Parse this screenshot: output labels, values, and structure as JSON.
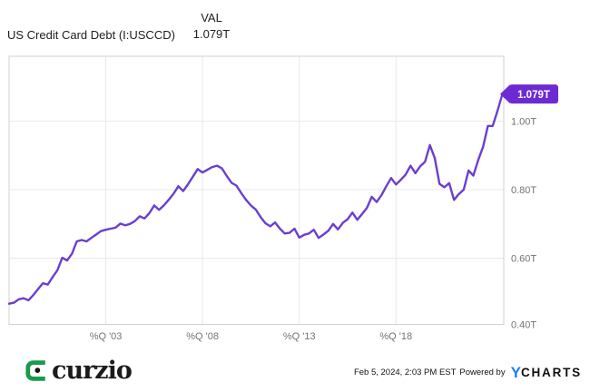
{
  "header": {
    "title": "US Credit Card Debt (I:USCCD)",
    "val_label": "VAL",
    "val_value": "1.079T"
  },
  "chart_data": {
    "type": "line",
    "series_name": "US Credit Card Debt",
    "unit": "trillions USD",
    "start_year": 1998,
    "start_quarter": 1,
    "end_period": "2023 Q3",
    "frequency": "quarterly",
    "quarterly_values": [
      0.467,
      0.47,
      0.48,
      0.483,
      0.477,
      0.492,
      0.51,
      0.527,
      0.523,
      0.545,
      0.565,
      0.601,
      0.593,
      0.613,
      0.649,
      0.653,
      0.649,
      0.659,
      0.669,
      0.679,
      0.683,
      0.686,
      0.689,
      0.701,
      0.696,
      0.7,
      0.708,
      0.722,
      0.716,
      0.731,
      0.754,
      0.741,
      0.754,
      0.77,
      0.788,
      0.81,
      0.796,
      0.816,
      0.838,
      0.86,
      0.85,
      0.858,
      0.866,
      0.87,
      0.862,
      0.84,
      0.82,
      0.812,
      0.79,
      0.77,
      0.754,
      0.742,
      0.72,
      0.702,
      0.693,
      0.704,
      0.686,
      0.672,
      0.674,
      0.686,
      0.66,
      0.668,
      0.672,
      0.683,
      0.659,
      0.669,
      0.68,
      0.7,
      0.684,
      0.703,
      0.714,
      0.733,
      0.712,
      0.729,
      0.747,
      0.779,
      0.764,
      0.784,
      0.81,
      0.834,
      0.815,
      0.829,
      0.844,
      0.87,
      0.848,
      0.868,
      0.881,
      0.93,
      0.893,
      0.817,
      0.807,
      0.819,
      0.77,
      0.787,
      0.8,
      0.856,
      0.841,
      0.887,
      0.925,
      0.986,
      0.986,
      1.031,
      1.079
    ],
    "last_value_label": "1.079T",
    "x_ticks": [
      {
        "label": "%Q '03",
        "year": 2003
      },
      {
        "label": "%Q '08",
        "year": 2008
      },
      {
        "label": "%Q '13",
        "year": 2013
      },
      {
        "label": "%Q '18",
        "year": 2018
      }
    ],
    "y_ticks": [
      {
        "label": "1.00T",
        "value": 1.0
      },
      {
        "label": "0.80T",
        "value": 0.8
      },
      {
        "label": "0.60T",
        "value": 0.6
      },
      {
        "label": "0.40T",
        "value": 0.4
      }
    ],
    "ylim": [
      0.4,
      1.19
    ],
    "grid": true,
    "legend_position": "none",
    "line_color": "#6a3fd0",
    "badge_color": "#6d2ad3",
    "grid_color": "#e9e9e9",
    "border_color": "#d2d2d2",
    "axis_label_color": "#737373"
  },
  "footer": {
    "brand": "curzio",
    "brand_green": "#189a4a",
    "timestamp": "Feb 5, 2024, 2:03 PM EST",
    "powered_by": "Powered by",
    "ycharts_y": "Y",
    "ycharts_rest": "CHARTS",
    "ycharts_blue": "#1b7ff0"
  }
}
